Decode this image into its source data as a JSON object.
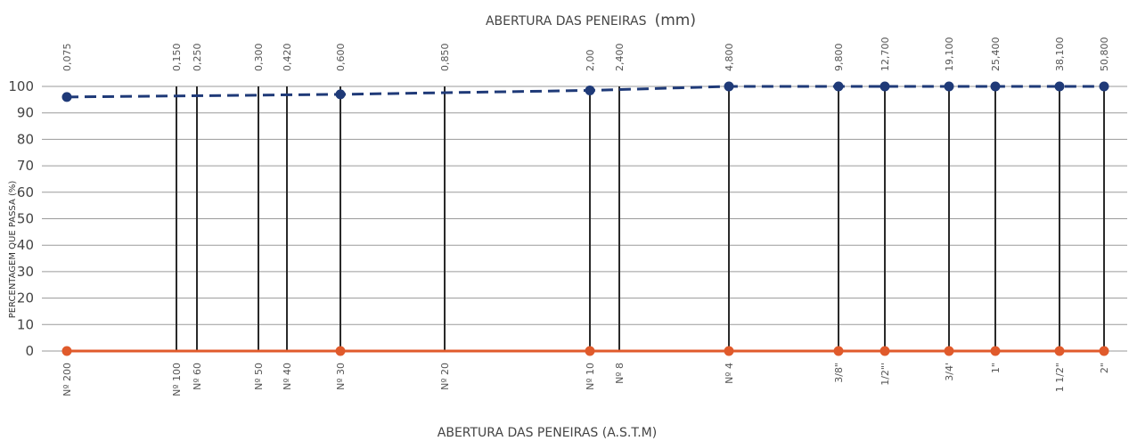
{
  "chart_data": {
    "type": "line",
    "title_top": "ABERTURA DAS PENEIRAS",
    "title_top_unit": "(mm)",
    "xlabel": "ABERTURA DAS PENEIRAS (A.S.T.M)",
    "ylabel": "PERCENTAGEM QUE PASSA (%)",
    "ylim": [
      0,
      100
    ],
    "y_ticks": [
      "0",
      "10",
      "20",
      "30",
      "40",
      "50",
      "60",
      "70",
      "80",
      "90",
      "100"
    ],
    "grid": true,
    "sieves": [
      {
        "mm": "0,075",
        "astm": "Nº 200"
      },
      {
        "mm": "0,150",
        "astm": "Nº 100"
      },
      {
        "mm": "0,250",
        "astm": "Nº 60"
      },
      {
        "mm": "0,300",
        "astm": "Nº 50"
      },
      {
        "mm": "0,420",
        "astm": "Nº 40"
      },
      {
        "mm": "0,600",
        "astm": "Nº 30"
      },
      {
        "mm": "0,850",
        "astm": "Nº 20"
      },
      {
        "mm": "2,00",
        "astm": "Nº 10"
      },
      {
        "mm": "2,400",
        "astm": "Nº 8"
      },
      {
        "mm": "4,800",
        "astm": "Nº 4"
      },
      {
        "mm": "9,800",
        "astm": "3/8\""
      },
      {
        "mm": "12,700",
        "astm": "1/2\"'"
      },
      {
        "mm": "19,100",
        "astm": "3/4'"
      },
      {
        "mm": "25,400",
        "astm": "1\""
      },
      {
        "mm": "38,100",
        "astm": "1 1/2\""
      },
      {
        "mm": "50,800",
        "astm": "2\""
      }
    ],
    "series": [
      {
        "color": "#1f3a78",
        "style": "dashed",
        "points": [
          {
            "x": "0,075",
            "y": 96
          },
          {
            "x": "0,600",
            "y": 97
          },
          {
            "x": "2,00",
            "y": 98.5
          },
          {
            "x": "4,800",
            "y": 100
          },
          {
            "x": "9,800",
            "y": 100
          },
          {
            "x": "12,700",
            "y": 100
          },
          {
            "x": "19,100",
            "y": 100
          },
          {
            "x": "25,400",
            "y": 100
          },
          {
            "x": "38,100",
            "y": 100
          },
          {
            "x": "50,800",
            "y": 100
          }
        ]
      },
      {
        "color": "#e05a2b",
        "style": "solid",
        "points": [
          {
            "x": "0,075",
            "y": 0
          },
          {
            "x": "0,600",
            "y": 0
          },
          {
            "x": "2,00",
            "y": 0
          },
          {
            "x": "4,800",
            "y": 0
          },
          {
            "x": "9,800",
            "y": 0
          },
          {
            "x": "12,700",
            "y": 0
          },
          {
            "x": "19,100",
            "y": 0
          },
          {
            "x": "25,400",
            "y": 0
          },
          {
            "x": "38,100",
            "y": 0
          },
          {
            "x": "50,800",
            "y": 0
          }
        ]
      }
    ]
  }
}
